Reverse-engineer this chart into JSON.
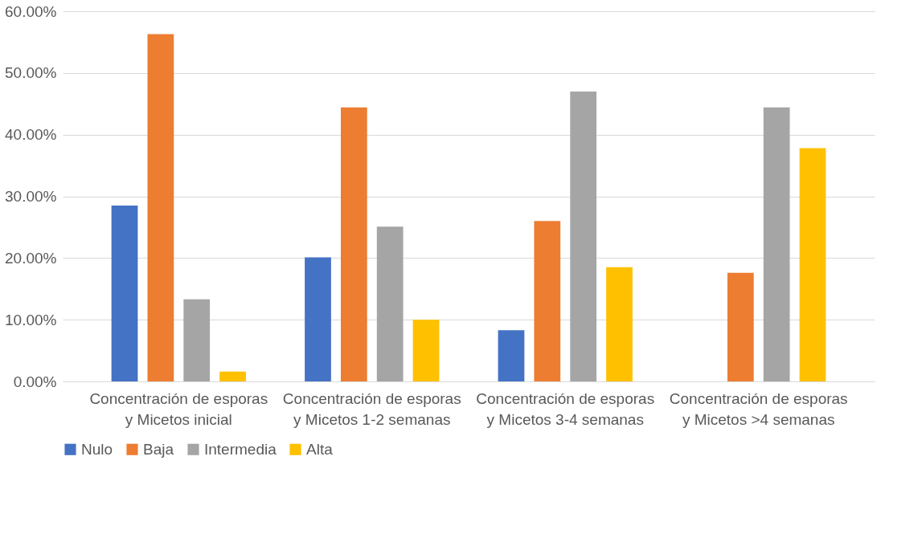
{
  "chart_data": {
    "type": "bar",
    "categories": [
      "Concentración de esporas y Micetos inicial",
      "Concentración de esporas y Micetos 1-2 semanas",
      "Concentración de esporas y Micetos 3-4 semanas",
      "Concentración de esporas y Micetos >4 semanas"
    ],
    "series": [
      {
        "name": "Nulo",
        "color": "#4472c4",
        "values": [
          28.5,
          20.1,
          8.3,
          0
        ]
      },
      {
        "name": "Baja",
        "color": "#ed7d31",
        "values": [
          56.3,
          44.4,
          26.0,
          17.6
        ]
      },
      {
        "name": "Intermedia",
        "color": "#a5a5a5",
        "values": [
          13.3,
          25.1,
          47.0,
          44.4
        ]
      },
      {
        "name": "Alta",
        "color": "#ffc000",
        "values": [
          1.6,
          10.0,
          18.5,
          37.8
        ]
      }
    ],
    "ylim": [
      0,
      60
    ],
    "yticks": [
      {
        "value": 0,
        "label": "0.00%"
      },
      {
        "value": 10,
        "label": "10.00%"
      },
      {
        "value": 20,
        "label": "20.00%"
      },
      {
        "value": 30,
        "label": "30.00%"
      },
      {
        "value": 40,
        "label": "40.00%"
      },
      {
        "value": 50,
        "label": "50.00%"
      },
      {
        "value": 60,
        "label": "60.00%"
      }
    ],
    "grid": "y",
    "legend": "bottom"
  }
}
